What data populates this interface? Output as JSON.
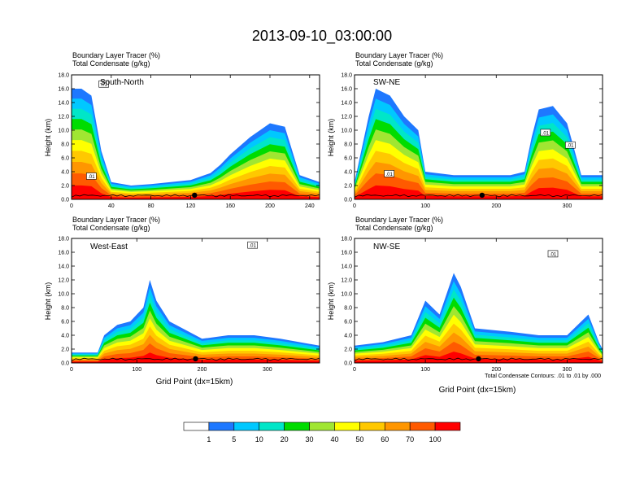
{
  "figure": {
    "title": "2013-09-10_03:00:00"
  },
  "colorbar": {
    "levels": [
      "1",
      "5",
      "10",
      "20",
      "30",
      "40",
      "50",
      "60",
      "70",
      "100"
    ],
    "colors": [
      "#ffffff",
      "#1e78ff",
      "#00c8ff",
      "#00e6c8",
      "#00dc00",
      "#a0e632",
      "#ffff00",
      "#ffc800",
      "#ff9600",
      "#ff5a00",
      "#ff0000"
    ]
  },
  "chart_data": [
    {
      "type": "heatmap",
      "title": "South-North",
      "header_line1": "Boundary Layer Tracer   (%)",
      "header_line2": "Total Condensate   (g/kg)",
      "ylabel": "Height (km)",
      "xlabel": "",
      "xlim": [
        0,
        250
      ],
      "xticks": [
        "0",
        "40",
        "80",
        "120",
        "160",
        "200",
        "240"
      ],
      "ylim": [
        0,
        18
      ],
      "yticks": [
        "0.0",
        "2.0",
        "4.0",
        "6.0",
        "8.0",
        "10.0",
        "12.0",
        "14.0",
        "16.0",
        "18.0"
      ],
      "marker_x": 124,
      "contour_labels": [
        ".01",
        ".01"
      ],
      "tracer_profile": [
        [
          0,
          16
        ],
        [
          10,
          16
        ],
        [
          20,
          15
        ],
        [
          30,
          7
        ],
        [
          40,
          2.5
        ],
        [
          60,
          2
        ],
        [
          80,
          2.2
        ],
        [
          100,
          2.5
        ],
        [
          120,
          2.8
        ],
        [
          140,
          3.8
        ],
        [
          150,
          5
        ],
        [
          160,
          6.5
        ],
        [
          180,
          9
        ],
        [
          200,
          11
        ],
        [
          215,
          10.5
        ],
        [
          230,
          3.5
        ],
        [
          250,
          2.5
        ]
      ]
    },
    {
      "type": "heatmap",
      "title": "SW-NE",
      "header_line1": "Boundary Layer Tracer   (%)",
      "header_line2": "Total Condensate   (g/kg)",
      "ylabel": "Height (km)",
      "xlabel": "",
      "xlim": [
        0,
        350
      ],
      "xticks": [
        "0",
        "100",
        "200",
        "300"
      ],
      "ylim": [
        0,
        18
      ],
      "yticks": [
        "0.0",
        "2.0",
        "4.0",
        "6.0",
        "8.0",
        "10.0",
        "12.0",
        "14.0",
        "16.0",
        "18.0"
      ],
      "marker_x": 180,
      "contour_labels": [
        ".01",
        ".01",
        ".01"
      ],
      "tracer_profile": [
        [
          0,
          2.5
        ],
        [
          20,
          12
        ],
        [
          30,
          16
        ],
        [
          50,
          15
        ],
        [
          70,
          12
        ],
        [
          90,
          10
        ],
        [
          100,
          4
        ],
        [
          140,
          3.5
        ],
        [
          180,
          3.5
        ],
        [
          220,
          3.5
        ],
        [
          240,
          4
        ],
        [
          250,
          9
        ],
        [
          260,
          13
        ],
        [
          280,
          13.5
        ],
        [
          300,
          11
        ],
        [
          320,
          3.5
        ],
        [
          350,
          3.5
        ]
      ]
    },
    {
      "type": "heatmap",
      "title": "West-East",
      "header_line1": "Boundary Layer Tracer   (%)",
      "header_line2": "Total Condensate   (g/kg)",
      "ylabel": "Height (km)",
      "xlabel": "Grid Point (dx=15km)",
      "xlim": [
        0,
        380
      ],
      "xticks": [
        "0",
        "100",
        "200",
        "300"
      ],
      "ylim": [
        0,
        18
      ],
      "yticks": [
        "0.0",
        "2.0",
        "4.0",
        "6.0",
        "8.0",
        "10.0",
        "12.0",
        "14.0",
        "16.0",
        "18.0"
      ],
      "marker_x": 190,
      "contour_labels": [
        ".01"
      ],
      "tracer_profile": [
        [
          0,
          1.5
        ],
        [
          40,
          1.5
        ],
        [
          50,
          4
        ],
        [
          70,
          5.5
        ],
        [
          90,
          6
        ],
        [
          110,
          8
        ],
        [
          120,
          12
        ],
        [
          130,
          9
        ],
        [
          150,
          6
        ],
        [
          180,
          4.5
        ],
        [
          200,
          3.5
        ],
        [
          240,
          4
        ],
        [
          280,
          4
        ],
        [
          320,
          3.5
        ],
        [
          380,
          2.5
        ]
      ]
    },
    {
      "type": "heatmap",
      "title": "NW-SE",
      "header_line1": "Boundary Layer Tracer   (%)",
      "header_line2": "Total Condensate   (g/kg)",
      "ylabel": "Height (km)",
      "xlabel": "Grid Point (dx=15km)",
      "xlim": [
        0,
        350
      ],
      "xticks": [
        "0",
        "100",
        "200",
        "300"
      ],
      "ylim": [
        0,
        18
      ],
      "yticks": [
        "0.0",
        "2.0",
        "4.0",
        "6.0",
        "8.0",
        "10.0",
        "12.0",
        "14.0",
        "16.0",
        "18.0"
      ],
      "marker_x": 175,
      "contour_labels": [
        ".01"
      ],
      "note": "Total Condensate Contours: .01 to .01 by .000",
      "tracer_profile": [
        [
          0,
          2.5
        ],
        [
          40,
          3
        ],
        [
          80,
          4
        ],
        [
          100,
          9
        ],
        [
          120,
          7
        ],
        [
          140,
          13
        ],
        [
          150,
          11
        ],
        [
          170,
          5
        ],
        [
          220,
          4.5
        ],
        [
          260,
          4
        ],
        [
          300,
          4
        ],
        [
          330,
          7
        ],
        [
          345,
          3
        ],
        [
          350,
          2
        ]
      ]
    }
  ]
}
